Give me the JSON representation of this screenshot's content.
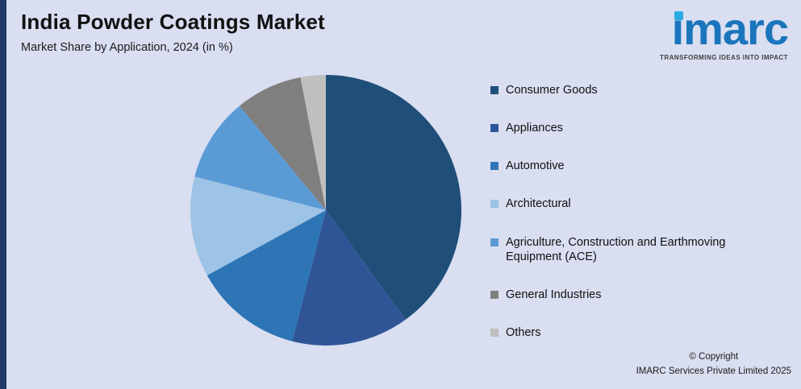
{
  "page": {
    "title": "India Powder Coatings Market",
    "subtitle": "Market Share by Application, 2024 (in %)"
  },
  "logo": {
    "text": "imarc",
    "tagline": "TRANSFORMING IDEAS INTO IMPACT",
    "brand_color": "#1b75bc",
    "accent_color": "#29abe2"
  },
  "footer": {
    "line1": "© Copyright",
    "line2": "IMARC Services Private Limited 2025"
  },
  "colors": {
    "background": "#d9def1",
    "left_bar": "#1f3864"
  },
  "chart_data": {
    "type": "pie",
    "title": "India Powder Coatings Market",
    "subtitle": "Market Share by Application, 2024 (in %)",
    "legend_position": "right",
    "start_angle": "top",
    "direction": "clockwise",
    "values_are_estimates_from_slice_angles": true,
    "labels": [
      "Consumer Goods",
      "Appliances",
      "Automotive",
      "Architectural",
      "Agriculture, Construction and Earthmoving Equipment (ACE)",
      "General Industries",
      "Others"
    ],
    "values": [
      40,
      14,
      13,
      12,
      10,
      8,
      3
    ],
    "colors": [
      "#1F4E79",
      "#2F5597",
      "#2E75B6",
      "#9DC3E6",
      "#5B9BD5",
      "#7F7F7F",
      "#BFBFBF"
    ]
  }
}
